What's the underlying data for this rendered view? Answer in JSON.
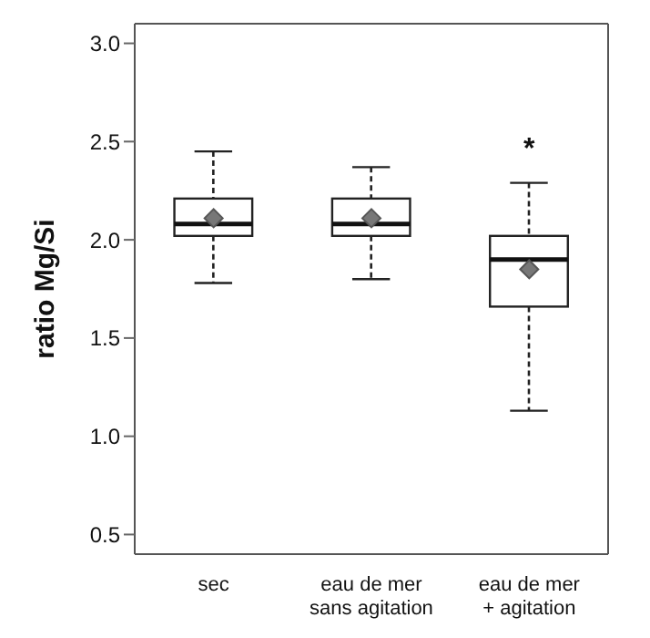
{
  "chart_data": {
    "type": "box",
    "ylabel": "ratio Mg/Si",
    "categories": [
      "sec",
      "eau de mer\nsans agitation",
      "eau de mer\n+ agitation"
    ],
    "boxes": [
      {
        "low": 1.78,
        "q1": 2.02,
        "median": 2.08,
        "q3": 2.21,
        "high": 2.45,
        "mean": 2.11
      },
      {
        "low": 1.8,
        "q1": 2.02,
        "median": 2.08,
        "q3": 2.21,
        "high": 2.37,
        "mean": 2.11
      },
      {
        "low": 1.13,
        "q1": 1.66,
        "median": 1.9,
        "q3": 2.02,
        "high": 2.29,
        "mean": 1.85
      }
    ],
    "ylim": [
      0.4,
      3.1
    ],
    "yticks": [
      0.5,
      {
        "value": 1,
        "label": "1.0"
      },
      1.5,
      {
        "value": 2,
        "label": "2.0"
      },
      2.5,
      {
        "value": 3,
        "label": "3.0"
      }
    ],
    "annotations": [
      "*"
    ],
    "grid": false,
    "legend": false
  }
}
